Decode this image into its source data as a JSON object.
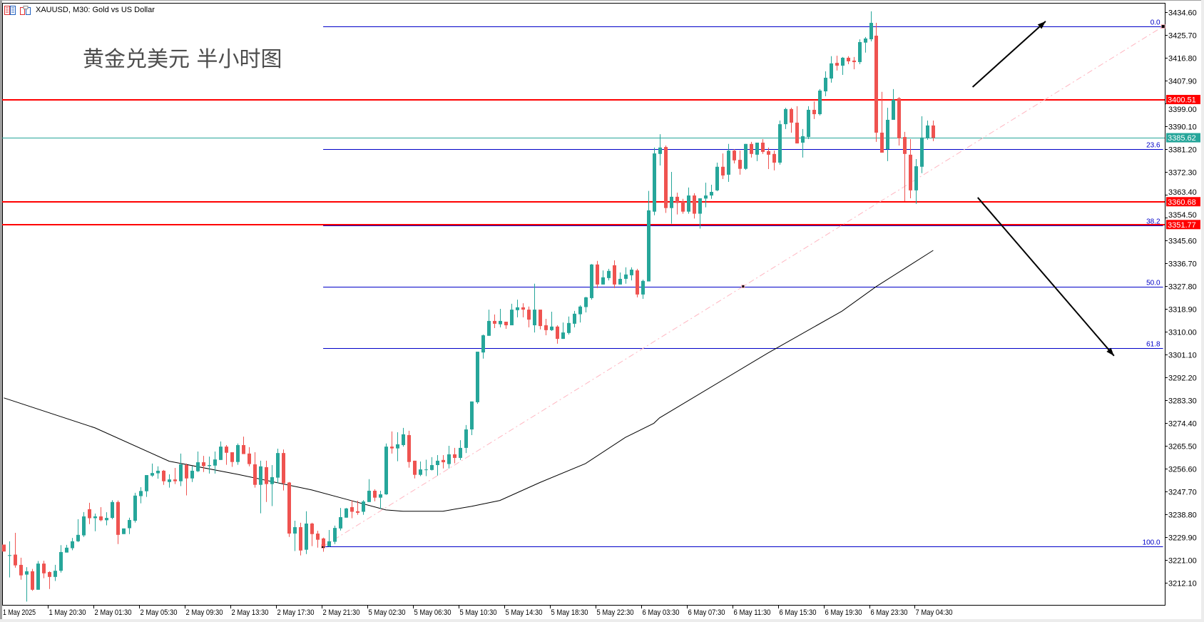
{
  "window": {
    "title": "XAUUSD, M30:  Gold vs US Dollar",
    "icons": [
      "chart-list-icon",
      "chart-window-icon"
    ]
  },
  "colors": {
    "bull": "#26a69a",
    "bear": "#ef5350",
    "support_line": "#ff0000",
    "fib": "#0000c8",
    "bid": "#26a69a",
    "trendline": "#ffb6c1",
    "ma": "#000000",
    "arrow": "#000000"
  },
  "chart_data": {
    "type": "candlestick",
    "title": "黄金兑美元 半小时图",
    "symbol": "XAUUSD",
    "timeframe": "M30",
    "ylim": [
      3203.5,
      3438.2
    ],
    "xlim_bars": [
      -0.3,
      203.6
    ],
    "y_ticks": [
      "3434.60",
      "3425.70",
      "3416.80",
      "3407.90",
      "3399.00",
      "3390.10",
      "3381.20",
      "3372.30",
      "3363.40",
      "3354.50",
      "3345.60",
      "3336.70",
      "3327.80",
      "3318.90",
      "3310.00",
      "3301.10",
      "3292.20",
      "3283.30",
      "3274.40",
      "3265.50",
      "3256.60",
      "3247.70",
      "3238.80",
      "3229.90",
      "3221.00",
      "3212.10"
    ],
    "x_ticks": [
      {
        "bar": 0,
        "label": "1 May 2025"
      },
      {
        "bar": 8,
        "label": "1 May 20:30"
      },
      {
        "bar": 16,
        "label": "2 May 01:30"
      },
      {
        "bar": 24,
        "label": "2 May 05:30"
      },
      {
        "bar": 32,
        "label": "2 May 09:30"
      },
      {
        "bar": 40,
        "label": "2 May 13:30"
      },
      {
        "bar": 48,
        "label": "2 May 17:30"
      },
      {
        "bar": 56,
        "label": "2 May 21:30"
      },
      {
        "bar": 64,
        "label": "5 May 02:30"
      },
      {
        "bar": 72,
        "label": "5 May 06:30"
      },
      {
        "bar": 80,
        "label": "5 May 10:30"
      },
      {
        "bar": 88,
        "label": "5 May 14:30"
      },
      {
        "bar": 96,
        "label": "5 May 18:30"
      },
      {
        "bar": 104,
        "label": "5 May 22:30"
      },
      {
        "bar": 112,
        "label": "6 May 03:30"
      },
      {
        "bar": 120,
        "label": "6 May 07:30"
      },
      {
        "bar": 128,
        "label": "6 May 11:30"
      },
      {
        "bar": 136,
        "label": "6 May 15:30"
      },
      {
        "bar": 144,
        "label": "6 May 19:30"
      },
      {
        "bar": 152,
        "label": "6 May 23:30"
      },
      {
        "bar": 160,
        "label": "7 May 04:30"
      }
    ],
    "ohlc": [
      [
        3227.0,
        3227.0,
        3224.3,
        3224.3
      ],
      [
        3222.6,
        3228.3,
        3214.2,
        3222.9
      ],
      [
        3223.1,
        3231.6,
        3218.0,
        3218.9
      ],
      [
        3219.1,
        3221.9,
        3213.3,
        3215.0
      ],
      [
        3215.3,
        3218.2,
        3204.8,
        3216.6
      ],
      [
        3216.6,
        3217.5,
        3209.0,
        3209.4
      ],
      [
        3209.4,
        3220.6,
        3209.4,
        3219.6
      ],
      [
        3219.6,
        3220.7,
        3213.9,
        3215.8
      ],
      [
        3216.3,
        3216.6,
        3209.7,
        3214.4
      ],
      [
        3214.4,
        3219.1,
        3212.8,
        3216.8
      ],
      [
        3216.8,
        3226.8,
        3216.1,
        3224.1
      ],
      [
        3223.9,
        3226.9,
        3223.9,
        3225.8
      ],
      [
        3225.6,
        3229.6,
        3224.8,
        3228.3
      ],
      [
        3228.3,
        3236.9,
        3228.0,
        3230.8
      ],
      [
        3230.6,
        3239.7,
        3230.0,
        3238.0
      ],
      [
        3240.8,
        3243.3,
        3235.0,
        3237.3
      ],
      [
        3237.3,
        3239.1,
        3232.2,
        3238.0
      ],
      [
        3238.0,
        3241.6,
        3236.1,
        3236.5
      ],
      [
        3236.5,
        3239.6,
        3234.5,
        3237.4
      ],
      [
        3237.4,
        3244.3,
        3236.9,
        3243.6
      ],
      [
        3243.6,
        3244.2,
        3227.2,
        3230.8
      ],
      [
        3231.1,
        3233.3,
        3231.1,
        3233.3
      ],
      [
        3233.4,
        3237.5,
        3231.1,
        3236.6
      ],
      [
        3236.3,
        3247.2,
        3235.6,
        3246.1
      ],
      [
        3245.9,
        3249.4,
        3243.1,
        3247.9
      ],
      [
        3247.8,
        3254.1,
        3245.6,
        3254.1
      ],
      [
        3253.9,
        3258.6,
        3253.4,
        3254.9
      ],
      [
        3254.8,
        3257.5,
        3252.7,
        3255.8
      ],
      [
        3255.8,
        3256.1,
        3250.3,
        3251.7
      ],
      [
        3251.4,
        3254.4,
        3249.2,
        3252.4
      ],
      [
        3252.4,
        3256.9,
        3250.6,
        3251.7
      ],
      [
        3251.7,
        3262.5,
        3249.8,
        3258.3
      ],
      [
        3258.0,
        3258.6,
        3246.2,
        3252.8
      ],
      [
        3252.8,
        3257.6,
        3251.4,
        3255.8
      ],
      [
        3255.6,
        3263.3,
        3255.3,
        3259.1
      ],
      [
        3259.1,
        3261.6,
        3255.3,
        3257.6
      ],
      [
        3257.6,
        3261.3,
        3254.7,
        3258.0
      ],
      [
        3257.8,
        3263.3,
        3254.7,
        3260.2
      ],
      [
        3260.0,
        3267.2,
        3260.0,
        3265.2
      ],
      [
        3265.2,
        3265.8,
        3258.1,
        3262.8
      ],
      [
        3263.0,
        3263.0,
        3257.3,
        3259.2
      ],
      [
        3259.2,
        3266.4,
        3258.1,
        3265.8
      ],
      [
        3265.8,
        3269.1,
        3262.3,
        3262.3
      ],
      [
        3262.5,
        3265.0,
        3257.5,
        3258.4
      ],
      [
        3258.3,
        3263.0,
        3249.2,
        3250.3
      ],
      [
        3250.3,
        3259.7,
        3239.2,
        3257.5
      ],
      [
        3257.2,
        3259.7,
        3243.6,
        3250.6
      ],
      [
        3250.6,
        3258.0,
        3242.0,
        3253.3
      ],
      [
        3253.1,
        3264.4,
        3250.9,
        3262.7
      ],
      [
        3262.7,
        3264.1,
        3248.1,
        3250.9
      ],
      [
        3251.2,
        3251.4,
        3230.0,
        3231.3
      ],
      [
        3231.3,
        3236.3,
        3224.5,
        3233.8
      ],
      [
        3233.8,
        3235.5,
        3222.8,
        3224.7
      ],
      [
        3225.0,
        3240.0,
        3223.3,
        3235.2
      ],
      [
        3235.2,
        3235.5,
        3226.4,
        3231.1
      ],
      [
        3231.3,
        3232.4,
        3225.8,
        3228.9
      ],
      [
        3229.4,
        3229.7,
        3224.2,
        3226.3
      ],
      [
        3226.3,
        3232.7,
        3226.1,
        3228.3
      ],
      [
        3228.1,
        3234.4,
        3227.2,
        3233.5
      ],
      [
        3233.3,
        3241.3,
        3232.5,
        3237.7
      ],
      [
        3237.5,
        3241.3,
        3237.5,
        3241.1
      ],
      [
        3241.6,
        3244.3,
        3237.3,
        3239.8
      ],
      [
        3240.0,
        3244.1,
        3238.6,
        3239.4
      ],
      [
        3239.8,
        3244.3,
        3238.6,
        3243.8
      ],
      [
        3243.6,
        3252.5,
        3243.6,
        3248.0
      ],
      [
        3248.0,
        3248.6,
        3243.9,
        3245.3
      ],
      [
        3245.3,
        3248.0,
        3241.0,
        3246.6
      ],
      [
        3246.6,
        3266.4,
        3246.4,
        3265.2
      ],
      [
        3265.2,
        3271.1,
        3262.5,
        3264.5
      ],
      [
        3264.5,
        3270.8,
        3259.5,
        3266.1
      ],
      [
        3265.8,
        3272.5,
        3265.2,
        3270.0
      ],
      [
        3269.7,
        3271.4,
        3257.0,
        3259.2
      ],
      [
        3259.7,
        3259.7,
        3252.8,
        3254.2
      ],
      [
        3254.2,
        3259.4,
        3253.7,
        3256.3
      ],
      [
        3256.1,
        3260.1,
        3253.7,
        3256.3
      ],
      [
        3256.1,
        3261.1,
        3255.9,
        3258.0
      ],
      [
        3258.0,
        3261.9,
        3253.9,
        3259.7
      ],
      [
        3260.0,
        3261.9,
        3256.7,
        3259.1
      ],
      [
        3258.4,
        3265.5,
        3256.7,
        3262.2
      ],
      [
        3262.2,
        3264.7,
        3258.7,
        3260.8
      ],
      [
        3260.8,
        3267.7,
        3260.0,
        3264.7
      ],
      [
        3264.7,
        3273.6,
        3262.7,
        3271.9
      ],
      [
        3271.9,
        3282.8,
        3269.7,
        3282.8
      ],
      [
        3282.5,
        3302.2,
        3281.9,
        3302.2
      ],
      [
        3301.9,
        3308.9,
        3299.5,
        3308.6
      ],
      [
        3308.4,
        3318.6,
        3308.4,
        3314.2
      ],
      [
        3314.2,
        3316.7,
        3311.4,
        3313.1
      ],
      [
        3312.9,
        3318.9,
        3311.7,
        3314.2
      ],
      [
        3313.9,
        3313.9,
        3311.1,
        3312.5
      ],
      [
        3312.5,
        3320.9,
        3312.5,
        3318.6
      ],
      [
        3318.4,
        3322.5,
        3315.6,
        3319.5
      ],
      [
        3319.5,
        3321.1,
        3315.6,
        3318.6
      ],
      [
        3318.6,
        3319.8,
        3311.7,
        3314.7
      ],
      [
        3312.5,
        3328.7,
        3309.7,
        3318.6
      ],
      [
        3318.6,
        3318.6,
        3310.9,
        3312.2
      ],
      [
        3312.5,
        3315.0,
        3308.6,
        3310.6
      ],
      [
        3310.6,
        3317.8,
        3310.3,
        3312.0
      ],
      [
        3312.0,
        3312.5,
        3305.3,
        3307.2
      ],
      [
        3307.2,
        3313.6,
        3307.2,
        3309.7
      ],
      [
        3309.5,
        3315.9,
        3308.9,
        3313.4
      ],
      [
        3313.1,
        3318.1,
        3311.7,
        3317.0
      ],
      [
        3316.8,
        3320.3,
        3313.6,
        3319.8
      ],
      [
        3319.6,
        3323.6,
        3317.5,
        3323.4
      ],
      [
        3323.1,
        3336.4,
        3322.5,
        3336.2
      ],
      [
        3336.2,
        3337.6,
        3327.0,
        3328.4
      ],
      [
        3328.4,
        3333.9,
        3328.4,
        3331.2
      ],
      [
        3330.9,
        3334.5,
        3330.0,
        3333.7
      ],
      [
        3335.9,
        3337.8,
        3327.0,
        3328.4
      ],
      [
        3328.4,
        3333.1,
        3328.4,
        3330.6
      ],
      [
        3330.6,
        3335.1,
        3328.7,
        3332.3
      ],
      [
        3332.0,
        3335.1,
        3330.0,
        3334.2
      ],
      [
        3333.9,
        3334.5,
        3323.4,
        3324.5
      ],
      [
        3324.5,
        3330.3,
        3322.8,
        3329.8
      ],
      [
        3329.6,
        3364.9,
        3329.6,
        3357.3
      ],
      [
        3356.8,
        3381.8,
        3355.4,
        3379.5
      ],
      [
        3379.3,
        3387.0,
        3374.8,
        3381.8
      ],
      [
        3382.0,
        3382.6,
        3356.3,
        3358.2
      ],
      [
        3358.2,
        3372.3,
        3352.1,
        3362.6
      ],
      [
        3362.6,
        3364.2,
        3355.7,
        3360.2
      ],
      [
        3360.7,
        3361.8,
        3356.0,
        3356.8
      ],
      [
        3356.8,
        3366.2,
        3356.0,
        3363.1
      ],
      [
        3363.1,
        3364.0,
        3354.1,
        3356.0
      ],
      [
        3356.0,
        3362.0,
        3350.2,
        3362.0
      ],
      [
        3361.9,
        3368.1,
        3358.5,
        3363.1
      ],
      [
        3363.1,
        3367.3,
        3361.8,
        3364.5
      ],
      [
        3365.1,
        3375.9,
        3364.8,
        3374.3
      ],
      [
        3374.3,
        3379.5,
        3369.5,
        3370.9
      ],
      [
        3371.2,
        3383.2,
        3368.4,
        3380.6
      ],
      [
        3380.6,
        3381.2,
        3375.6,
        3376.8
      ],
      [
        3377.0,
        3380.6,
        3371.2,
        3373.5
      ],
      [
        3373.5,
        3383.2,
        3373.1,
        3383.2
      ],
      [
        3383.2,
        3384.0,
        3377.9,
        3379.3
      ],
      [
        3379.0,
        3383.7,
        3376.5,
        3383.7
      ],
      [
        3383.7,
        3385.1,
        3379.3,
        3380.1
      ],
      [
        3380.4,
        3381.8,
        3373.4,
        3379.0
      ],
      [
        3379.3,
        3380.6,
        3372.9,
        3375.9
      ],
      [
        3375.9,
        3392.3,
        3375.1,
        3390.9
      ],
      [
        3390.9,
        3397.3,
        3389.0,
        3396.8
      ],
      [
        3396.8,
        3397.3,
        3387.6,
        3391.5
      ],
      [
        3391.5,
        3397.9,
        3383.4,
        3383.4
      ],
      [
        3383.7,
        3389.0,
        3377.9,
        3386.2
      ],
      [
        3385.9,
        3397.9,
        3385.1,
        3396.5
      ],
      [
        3396.5,
        3399.8,
        3392.9,
        3394.8
      ],
      [
        3394.8,
        3404.6,
        3394.3,
        3404.0
      ],
      [
        3403.7,
        3411.5,
        3401.8,
        3409.0
      ],
      [
        3408.7,
        3417.4,
        3407.1,
        3414.6
      ],
      [
        3414.8,
        3417.6,
        3411.8,
        3413.7
      ],
      [
        3413.7,
        3417.1,
        3410.1,
        3416.8
      ],
      [
        3416.8,
        3417.4,
        3414.3,
        3415.4
      ],
      [
        3415.7,
        3417.1,
        3412.3,
        3415.1
      ],
      [
        3415.1,
        3424.0,
        3414.3,
        3422.9
      ],
      [
        3422.7,
        3424.9,
        3418.8,
        3424.3
      ],
      [
        3424.0,
        3434.9,
        3423.2,
        3430.4
      ],
      [
        3425.4,
        3430.4,
        3384.0,
        3387.6
      ],
      [
        3387.6,
        3403.5,
        3379.8,
        3379.8
      ],
      [
        3381.2,
        3397.3,
        3376.5,
        3392.6
      ],
      [
        3392.6,
        3404.6,
        3392.6,
        3400.4
      ],
      [
        3401.0,
        3401.5,
        3382.6,
        3385.4
      ],
      [
        3385.9,
        3387.9,
        3360.9,
        3379.3
      ],
      [
        3379.0,
        3385.1,
        3362.0,
        3365.1
      ],
      [
        3365.1,
        3377.3,
        3359.8,
        3374.5
      ],
      [
        3374.3,
        3394.0,
        3371.8,
        3385.7
      ],
      [
        3385.4,
        3392.3,
        3384.8,
        3390.4
      ],
      [
        3390.4,
        3392.3,
        3384.3,
        3385.6
      ]
    ],
    "moving_average": [
      [
        0,
        3284.2
      ],
      [
        16,
        3272.5
      ],
      [
        29,
        3259.5
      ],
      [
        41,
        3254.4
      ],
      [
        54,
        3248.3
      ],
      [
        60,
        3244.7
      ],
      [
        67,
        3240.5
      ],
      [
        70,
        3240.0
      ],
      [
        77,
        3240.0
      ],
      [
        82,
        3241.9
      ],
      [
        87,
        3244.2
      ],
      [
        94,
        3251.2
      ],
      [
        102,
        3258.6
      ],
      [
        109,
        3268.8
      ],
      [
        114,
        3274.3
      ],
      [
        115,
        3276.4
      ],
      [
        134,
        3301.7
      ],
      [
        147,
        3318.0
      ],
      [
        153,
        3327.6
      ],
      [
        163,
        3341.7
      ]
    ],
    "horizontal_lines": [
      {
        "price": 3400.51,
        "label": "3400.51"
      },
      {
        "price": 3360.68,
        "label": "3360.68"
      },
      {
        "price": 3351.77,
        "label": "3351.77"
      }
    ],
    "bid": {
      "price": 3385.62,
      "label": "3385.62"
    },
    "fibonacci": {
      "high": 3429.0,
      "low": 3226.3,
      "start_bar": 56,
      "end_bar": 203.3,
      "levels": [
        {
          "ratio": 0.0,
          "label": "0.0"
        },
        {
          "ratio": 0.236,
          "label": "23.6"
        },
        {
          "ratio": 0.382,
          "label": "38.2"
        },
        {
          "ratio": 0.5,
          "label": "50.0"
        },
        {
          "ratio": 0.618,
          "label": "61.8"
        },
        {
          "ratio": 1.0,
          "label": "100.0"
        }
      ]
    },
    "trendline": {
      "from": [
        56,
        3226.3
      ],
      "to": [
        203.3,
        3429.0
      ]
    },
    "arrows": [
      {
        "from": [
          169.9,
          3405.4
        ],
        "to": [
          182.7,
          3431.0
        ]
      },
      {
        "from": [
          170.8,
          3362.3
        ],
        "to": [
          194.7,
          3300.6
        ]
      }
    ]
  }
}
